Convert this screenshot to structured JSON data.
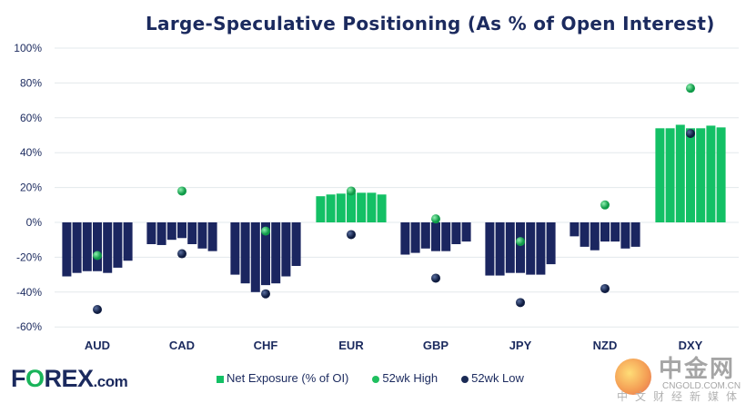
{
  "chart_data": {
    "type": "bar",
    "title": "Large-Speculative Positioning (As % of Open Interest)",
    "categories": [
      "AUD",
      "CAD",
      "CHF",
      "EUR",
      "GBP",
      "JPY",
      "NZD",
      "DXY"
    ],
    "net_exposure": [
      [
        -31,
        -29,
        -28,
        -28,
        -29,
        -26,
        -22
      ],
      [
        -12.5,
        -13,
        -10,
        -9,
        -12.5,
        -15,
        -16.5
      ],
      [
        -30,
        -35,
        -40,
        -36,
        -35,
        -31,
        -25
      ],
      [
        15,
        16,
        16.5,
        17,
        17,
        17,
        16
      ],
      [
        -18.5,
        -17.5,
        -15,
        -16.5,
        -16.5,
        -12.5,
        -11
      ],
      [
        -30.5,
        -30.5,
        -29,
        -29,
        -30,
        -30,
        -24
      ],
      [
        -8,
        -14,
        -16,
        -11,
        -11,
        -15,
        -14
      ]
    ],
    "net_exposure_dxy": [
      54,
      54,
      56,
      54,
      54,
      55.5,
      54.5
    ],
    "high_52wk": [
      -19,
      18,
      -5,
      18,
      2,
      -11,
      10,
      77
    ],
    "low_52wk": [
      -50,
      -18,
      -41,
      -7,
      -32,
      -46,
      -38,
      51
    ],
    "ylim": [
      -60,
      100
    ],
    "yticks": [
      "100%",
      "80%",
      "60%",
      "40%",
      "20%",
      "0%",
      "-20%",
      "-40%",
      "-60%"
    ],
    "ytick_values": [
      100,
      80,
      60,
      40,
      20,
      0,
      -20,
      -40,
      -60
    ],
    "grid": true,
    "legend": [
      "Net Exposure (% of OI)",
      "52wk High",
      "52wk Low"
    ],
    "legend_placement": "bottom",
    "colors": {
      "negative": "#1b2660",
      "positive": "#13c065",
      "high": "#1fbf5f",
      "low": "#1a2a55",
      "grid": "#e3e8ec",
      "text": "#1b2a5e"
    }
  },
  "logo": {
    "brand1": "F",
    "brand2": "O",
    "brand3": "REX",
    "brand4": ".com"
  },
  "watermark": {
    "cn": "中金网",
    "url": "CNGOLD.COM.CN",
    "sub": "中文财经新媒体"
  }
}
